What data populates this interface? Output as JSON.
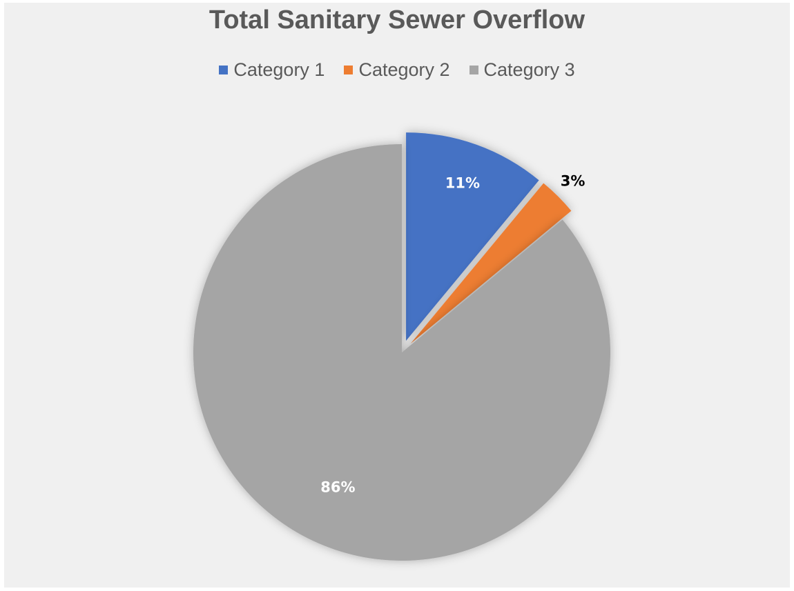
{
  "chart_data": {
    "type": "pie",
    "title": "Total Sanitary Sewer Overflow",
    "legend_position": "top",
    "categories": [
      "Category 1",
      "Category 2",
      "Category 3"
    ],
    "values": [
      11,
      3,
      86
    ],
    "labels": [
      "11%",
      "3%",
      "86%"
    ],
    "colors": [
      "#4472c4",
      "#ed7d31",
      "#a5a5a5"
    ],
    "label_colors": [
      "#ffffff",
      "#000000",
      "#ffffff"
    ],
    "exploded": [
      true,
      true,
      false
    ]
  }
}
